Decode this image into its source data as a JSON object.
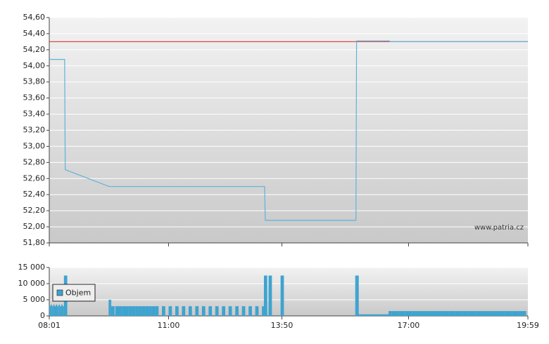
{
  "chart_data": [
    {
      "type": "line",
      "series": [
        {
          "color": "#5fb3d9",
          "x": [
            "08:01",
            "08:24",
            "08:25",
            "09:31",
            "13:24",
            "13:25",
            "15:41",
            "15:42",
            "16:31",
            "16:32",
            "19:59"
          ],
          "values": [
            54.08,
            54.08,
            52.71,
            52.5,
            52.5,
            52.08,
            52.08,
            54.31,
            54.31,
            54.3,
            54.3
          ]
        }
      ],
      "reference_line": {
        "value": 54.3,
        "color": "#e04848"
      },
      "annotation": "www.patria.cz",
      "xlim": [
        "08:01",
        "19:59"
      ],
      "ylim": [
        51.8,
        54.6
      ],
      "yticks": [
        {
          "value": 51.8,
          "label": "51,80"
        },
        {
          "value": 52.0,
          "label": "52,00"
        },
        {
          "value": 52.2,
          "label": "52,20"
        },
        {
          "value": 52.4,
          "label": "52,40"
        },
        {
          "value": 52.6,
          "label": "52,60"
        },
        {
          "value": 52.8,
          "label": "52,80"
        },
        {
          "value": 53.0,
          "label": "53,00"
        },
        {
          "value": 53.2,
          "label": "53,20"
        },
        {
          "value": 53.4,
          "label": "53,40"
        },
        {
          "value": 53.6,
          "label": "53,60"
        },
        {
          "value": 53.8,
          "label": "53,80"
        },
        {
          "value": 54.0,
          "label": "54,00"
        },
        {
          "value": 54.2,
          "label": "54,20"
        },
        {
          "value": 54.4,
          "label": "54,40"
        },
        {
          "value": 54.6,
          "label": "54,60"
        }
      ],
      "grid": true
    },
    {
      "type": "bar",
      "series": [
        {
          "name": "Objem",
          "color": "#3ea3cf",
          "x": [
            "08:01",
            "08:03",
            "08:05",
            "08:07",
            "08:09",
            "08:11",
            "08:13",
            "08:15",
            "08:17",
            "08:19",
            "08:21",
            "08:23",
            "09:30",
            "09:32",
            "09:34",
            "09:40",
            "09:45",
            "09:50",
            "09:55",
            "10:00",
            "10:05",
            "10:10",
            "10:15",
            "10:20",
            "10:25",
            "10:30",
            "10:35",
            "10:40",
            "10:50",
            "11:00",
            "11:10",
            "11:20",
            "11:30",
            "11:40",
            "11:50",
            "12:00",
            "12:10",
            "12:20",
            "12:30",
            "12:40",
            "12:50",
            "13:00",
            "13:10",
            "13:20",
            "13:23",
            "13:30",
            "13:48",
            "15:40",
            "15:41",
            "15:42",
            "15:43",
            "15:44",
            "15:45",
            "15:50",
            "15:55",
            "16:00",
            "16:05",
            "16:10",
            "16:15",
            "16:20",
            "16:25",
            "16:30",
            "16:35",
            "16:40",
            "16:45",
            "16:50",
            "16:55",
            "17:00",
            "17:05",
            "17:10",
            "17:15",
            "17:20",
            "17:25",
            "17:30",
            "17:35",
            "17:40",
            "17:45",
            "17:50",
            "17:55",
            "18:00",
            "18:05",
            "18:10",
            "18:15",
            "18:20",
            "18:25",
            "18:30",
            "18:35",
            "18:40",
            "18:45",
            "18:50",
            "18:55",
            "19:00",
            "19:05",
            "19:10",
            "19:15",
            "19:20",
            "19:25",
            "19:30",
            "19:35",
            "19:40",
            "19:45",
            "19:50",
            "19:55"
          ],
          "values": [
            3000,
            3500,
            3000,
            3500,
            3000,
            3500,
            3000,
            3500,
            3000,
            3500,
            3000,
            12500,
            5000,
            5000,
            3000,
            3000,
            3000,
            3000,
            3000,
            3000,
            3000,
            3000,
            3000,
            3000,
            3000,
            3000,
            3000,
            3000,
            3000,
            3000,
            3000,
            3000,
            3000,
            3000,
            3000,
            3000,
            3000,
            3000,
            3000,
            3000,
            3000,
            3000,
            3000,
            3000,
            12500,
            12500,
            12500,
            12500,
            12500,
            12500,
            12500,
            12500,
            500,
            500,
            500,
            500,
            500,
            500,
            500,
            500,
            500,
            1500,
            1500,
            1500,
            1500,
            1500,
            1500,
            1500,
            1500,
            1500,
            1500,
            1500,
            1500,
            1500,
            1500,
            1500,
            1500,
            1500,
            1500,
            1500,
            1500,
            1500,
            1500,
            1500,
            1500,
            1500,
            1500,
            1500,
            1500,
            1500,
            1500,
            1500,
            1500,
            1500,
            1500,
            1500,
            1500,
            1500,
            1500,
            1500,
            1500,
            1500,
            1500
          ]
        }
      ],
      "xlim": [
        "08:01",
        "19:59"
      ],
      "xticks": [
        "08:01",
        "11:00",
        "13:50",
        "17:00",
        "19:59"
      ],
      "ylim": [
        0,
        15000
      ],
      "yticks": [
        0,
        {
          "value": 5000,
          "label": "5 000"
        },
        {
          "value": 10000,
          "label": "10 000"
        },
        {
          "value": 15000,
          "label": "15 000"
        }
      ],
      "grid": true,
      "legend": "top-left"
    }
  ]
}
